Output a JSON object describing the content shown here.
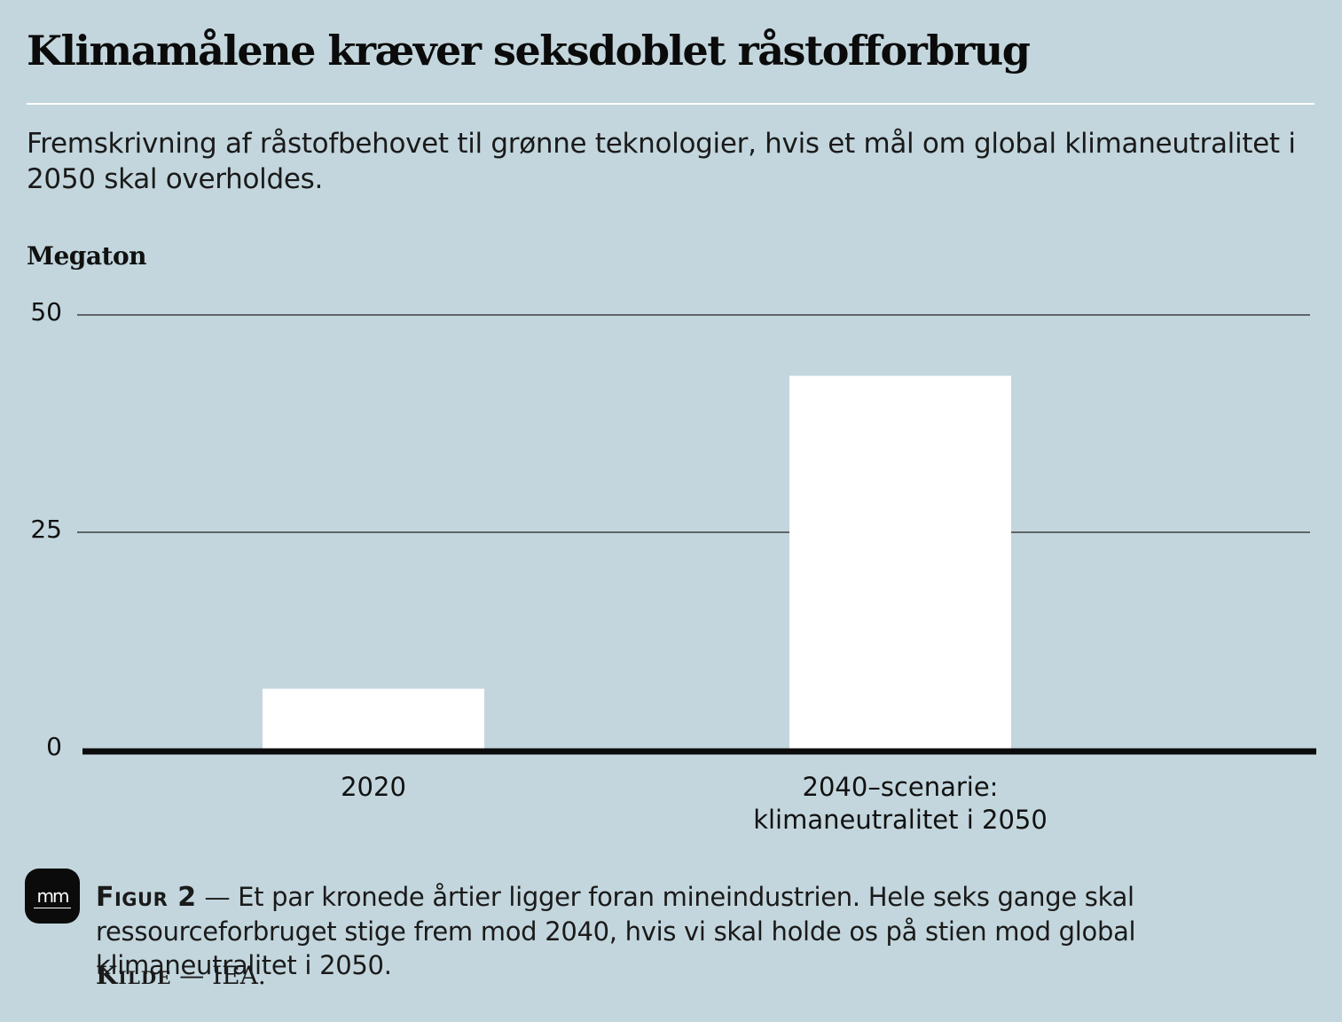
{
  "header": {
    "title": "Klimamålene kræver seksdoblet råstofforbrug",
    "subtitle": "Fremskrivning af råstofbehovet til grønne teknologier, hvis et mål om global klimaneutralitet i 2050 skal overholdes."
  },
  "chart_data": {
    "type": "bar",
    "unit_label": "Megaton",
    "categories": [
      [
        "2020"
      ],
      [
        "2040–scenarie:",
        "klimaneutralitet i 2050"
      ]
    ],
    "values": [
      7,
      43
    ],
    "yticks": [
      "0",
      "25",
      "50"
    ],
    "ylim": [
      0,
      50
    ],
    "grid": true,
    "bar_color": "#ffffff",
    "gridline_color": "#222222"
  },
  "footer": {
    "logo_text": "mm",
    "figure_label": "Figur 2",
    "dash": "—",
    "caption": "Et par kronede årtier ligger foran mineindustrien. Hele seks gange skal ressourceforbruget stige frem mod 2040, hvis vi skal holde os på stien mod global klimaneutralitet i 2050.",
    "source_label": "Kilde",
    "source_text": "IEA."
  },
  "colors": {
    "background": "#c3d6dd",
    "text": "#111111"
  }
}
